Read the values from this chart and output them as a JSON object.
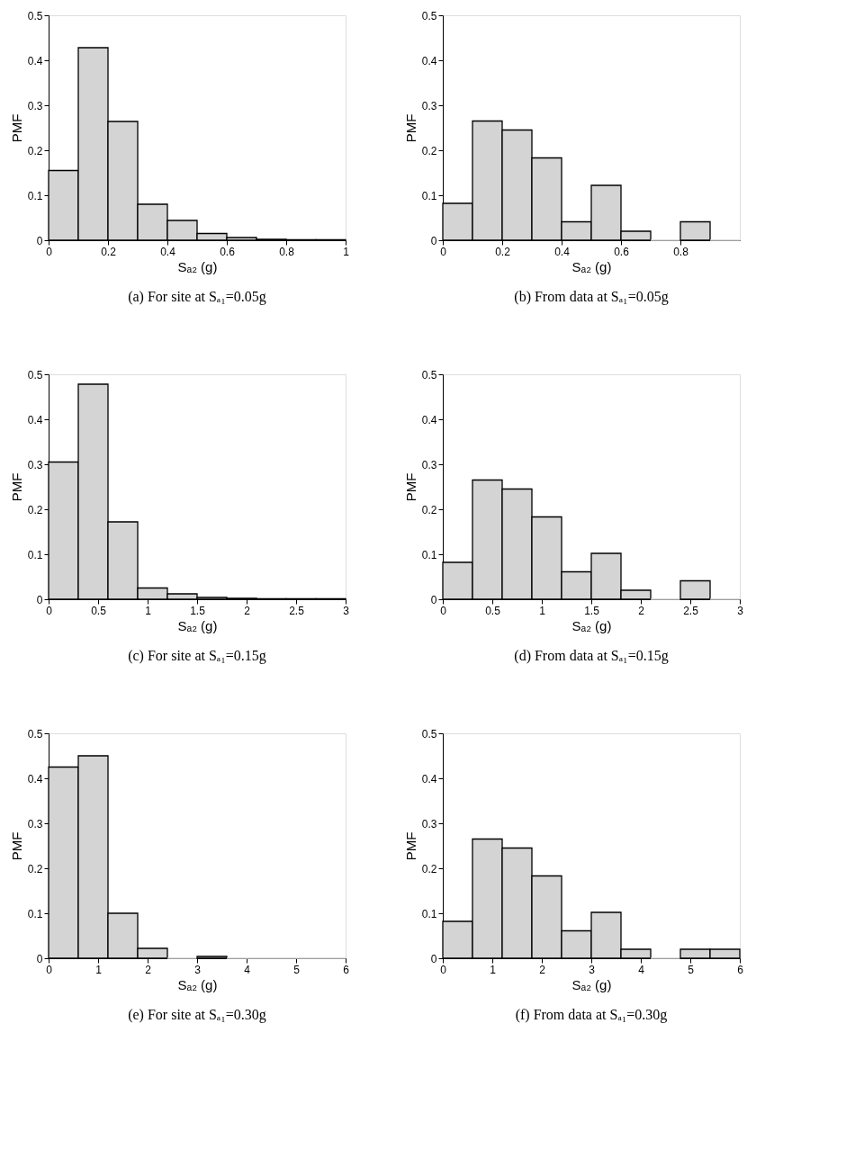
{
  "chart_data": [
    {
      "type": "histogram",
      "title": "(a) For site at Sₐ₁=0.05g",
      "xlabel": "Sₐ₂ (g)",
      "ylabel": "PMF",
      "color": "#d4d4d4",
      "bins": [
        0,
        0.1,
        0.2,
        0.3,
        0.4,
        0.5,
        0.6,
        0.7,
        0.8,
        0.9,
        1.0
      ],
      "values": [
        0.155,
        0.428,
        0.264,
        0.08,
        0.044,
        0.015,
        0.006,
        0.002,
        0.001,
        0.001
      ],
      "xlim": [
        0,
        1
      ],
      "xticks": [
        0,
        0.2,
        0.4,
        0.6,
        0.8,
        1
      ],
      "ylim": [
        0,
        0.5
      ],
      "yticks": [
        0,
        0.1,
        0.2,
        0.3,
        0.4,
        0.5
      ]
    },
    {
      "type": "histogram",
      "title": "(b) From data at Sₐ₁=0.05g",
      "xlabel": "Sₐ₂ (g)",
      "ylabel": "PMF",
      "color": "#d4d4d4",
      "bins": [
        0,
        0.1,
        0.2,
        0.3,
        0.4,
        0.5,
        0.6,
        0.7,
        0.8,
        0.9,
        1.0
      ],
      "values": [
        0.082,
        0.265,
        0.245,
        0.183,
        0.041,
        0.122,
        0.02,
        0,
        0.041,
        0
      ],
      "xlim": [
        0,
        1
      ],
      "xticks": [
        0,
        0.2,
        0.4,
        0.6,
        0.8
      ],
      "ylim": [
        0,
        0.5
      ],
      "yticks": [
        0,
        0.1,
        0.2,
        0.3,
        0.4,
        0.5
      ]
    },
    {
      "type": "histogram",
      "title": "(c) For site at Sₐ₁=0.15g",
      "xlabel": "Sₐ₂ (g)",
      "ylabel": "PMF",
      "color": "#d4d4d4",
      "bins": [
        0,
        0.3,
        0.6,
        0.9,
        1.2,
        1.5,
        1.8,
        2.1,
        2.4,
        2.7,
        3.0
      ],
      "values": [
        0.305,
        0.478,
        0.172,
        0.025,
        0.012,
        0.004,
        0.002,
        0.001,
        0.001,
        0.001
      ],
      "xlim": [
        0,
        3
      ],
      "xticks": [
        0,
        0.5,
        1,
        1.5,
        2,
        2.5,
        3
      ],
      "ylim": [
        0,
        0.5
      ],
      "yticks": [
        0,
        0.1,
        0.2,
        0.3,
        0.4,
        0.5
      ]
    },
    {
      "type": "histogram",
      "title": "(d) From data at Sₐ₁=0.15g",
      "xlabel": "Sₐ₂ (g)",
      "ylabel": "PMF",
      "color": "#d4d4d4",
      "bins": [
        0,
        0.3,
        0.6,
        0.9,
        1.2,
        1.5,
        1.8,
        2.1,
        2.4,
        2.7,
        3.0
      ],
      "values": [
        0.082,
        0.265,
        0.245,
        0.183,
        0.061,
        0.102,
        0.02,
        0,
        0.041,
        0
      ],
      "xlim": [
        0,
        3
      ],
      "xticks": [
        0,
        0.5,
        1,
        1.5,
        2,
        2.5,
        3
      ],
      "ylim": [
        0,
        0.5
      ],
      "yticks": [
        0,
        0.1,
        0.2,
        0.3,
        0.4,
        0.5
      ]
    },
    {
      "type": "histogram",
      "title": "(e) For site at Sₐ₁=0.30g",
      "xlabel": "Sₐ₂ (g)",
      "ylabel": "PMF",
      "color": "#d4d4d4",
      "bins": [
        0,
        0.6,
        1.2,
        1.8,
        2.4,
        3.0,
        3.6,
        4.2,
        4.8,
        5.4,
        6.0
      ],
      "values": [
        0.425,
        0.45,
        0.1,
        0.022,
        0,
        0.004,
        0,
        0,
        0,
        0
      ],
      "xlim": [
        0,
        6
      ],
      "xticks": [
        0,
        1,
        2,
        3,
        4,
        5,
        6
      ],
      "ylim": [
        0,
        0.5
      ],
      "yticks": [
        0,
        0.1,
        0.2,
        0.3,
        0.4,
        0.5
      ]
    },
    {
      "type": "histogram",
      "title": "(f) From data at Sₐ₁=0.30g",
      "xlabel": "Sₐ₂ (g)",
      "ylabel": "PMF",
      "color": "#d4d4d4",
      "bins": [
        0,
        0.6,
        1.2,
        1.8,
        2.4,
        3.0,
        3.6,
        4.2,
        4.8,
        5.4,
        6.0
      ],
      "values": [
        0.082,
        0.265,
        0.245,
        0.183,
        0.061,
        0.102,
        0.02,
        0,
        0.02,
        0.02
      ],
      "xlim": [
        0,
        6
      ],
      "xticks": [
        0,
        1,
        2,
        3,
        4,
        5,
        6
      ],
      "ylim": [
        0,
        0.5
      ],
      "yticks": [
        0,
        0.1,
        0.2,
        0.3,
        0.4,
        0.5
      ]
    }
  ]
}
